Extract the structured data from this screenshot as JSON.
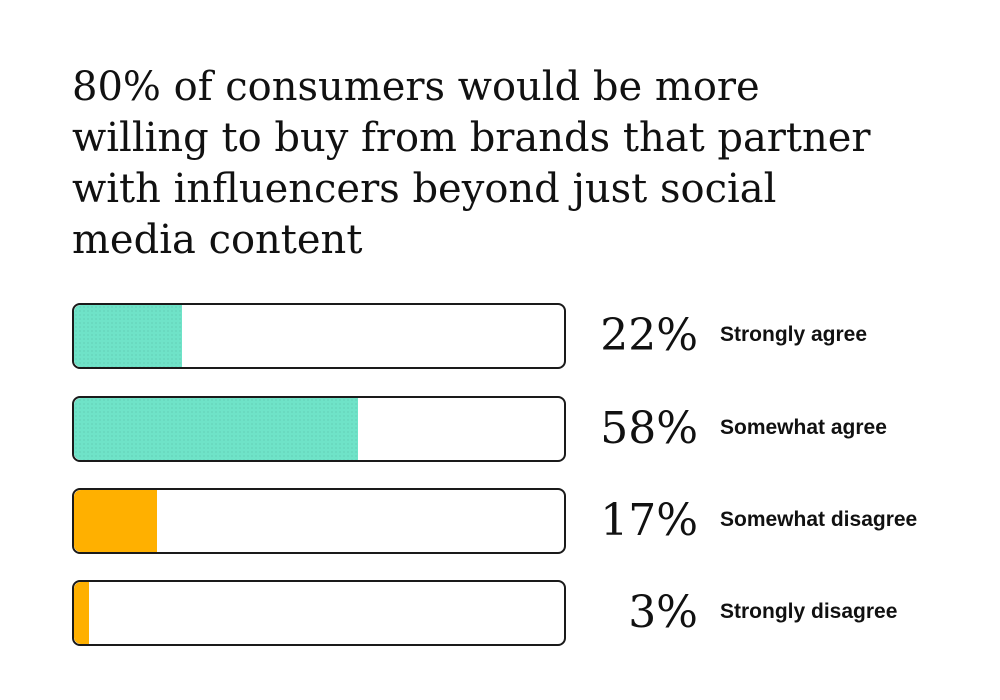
{
  "chart_data": {
    "type": "bar",
    "orientation": "horizontal",
    "title": "80% of consumers would be more willing to buy from brands that partner with influencers beyond just social media content",
    "categories": [
      "Strongly agree",
      "Somewhat agree",
      "Somewhat disagree",
      "Strongly disagree"
    ],
    "values": [
      22,
      58,
      17,
      3
    ],
    "value_labels": [
      "22%",
      "58%",
      "17%",
      "3%"
    ],
    "xlim": [
      0,
      100
    ],
    "unit": "%",
    "colors": [
      "#6fe3c8",
      "#6fe3c8",
      "#ffb000",
      "#ffb000"
    ],
    "grid": false,
    "legend": "none"
  }
}
